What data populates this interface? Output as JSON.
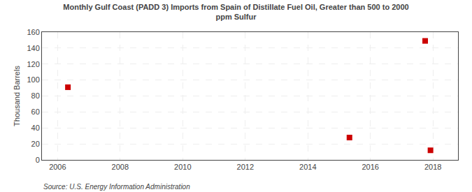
{
  "chart_data": {
    "type": "scatter",
    "title": "Monthly Gulf Coast (PADD 3) Imports from Spain of Distillate Fuel Oil, Greater than 500 to 2000\nppm Sulfur",
    "ylabel": "Thousand Barrels",
    "annotations": [
      "Source: U.S. Energy Information Administration"
    ],
    "x": [
      2006.33,
      2015.33,
      2017.75,
      2017.92
    ],
    "values": [
      91,
      28,
      149,
      12
    ],
    "color": "#cc0000",
    "marker": "square",
    "xlim": [
      2005.5,
      2018.8
    ],
    "ylim": [
      0,
      160
    ],
    "xticks": [
      2006,
      2008,
      2010,
      2012,
      2014,
      2016,
      2018
    ],
    "yticks": [
      0,
      20,
      40,
      60,
      80,
      100,
      120,
      140,
      160
    ],
    "grid": true
  }
}
